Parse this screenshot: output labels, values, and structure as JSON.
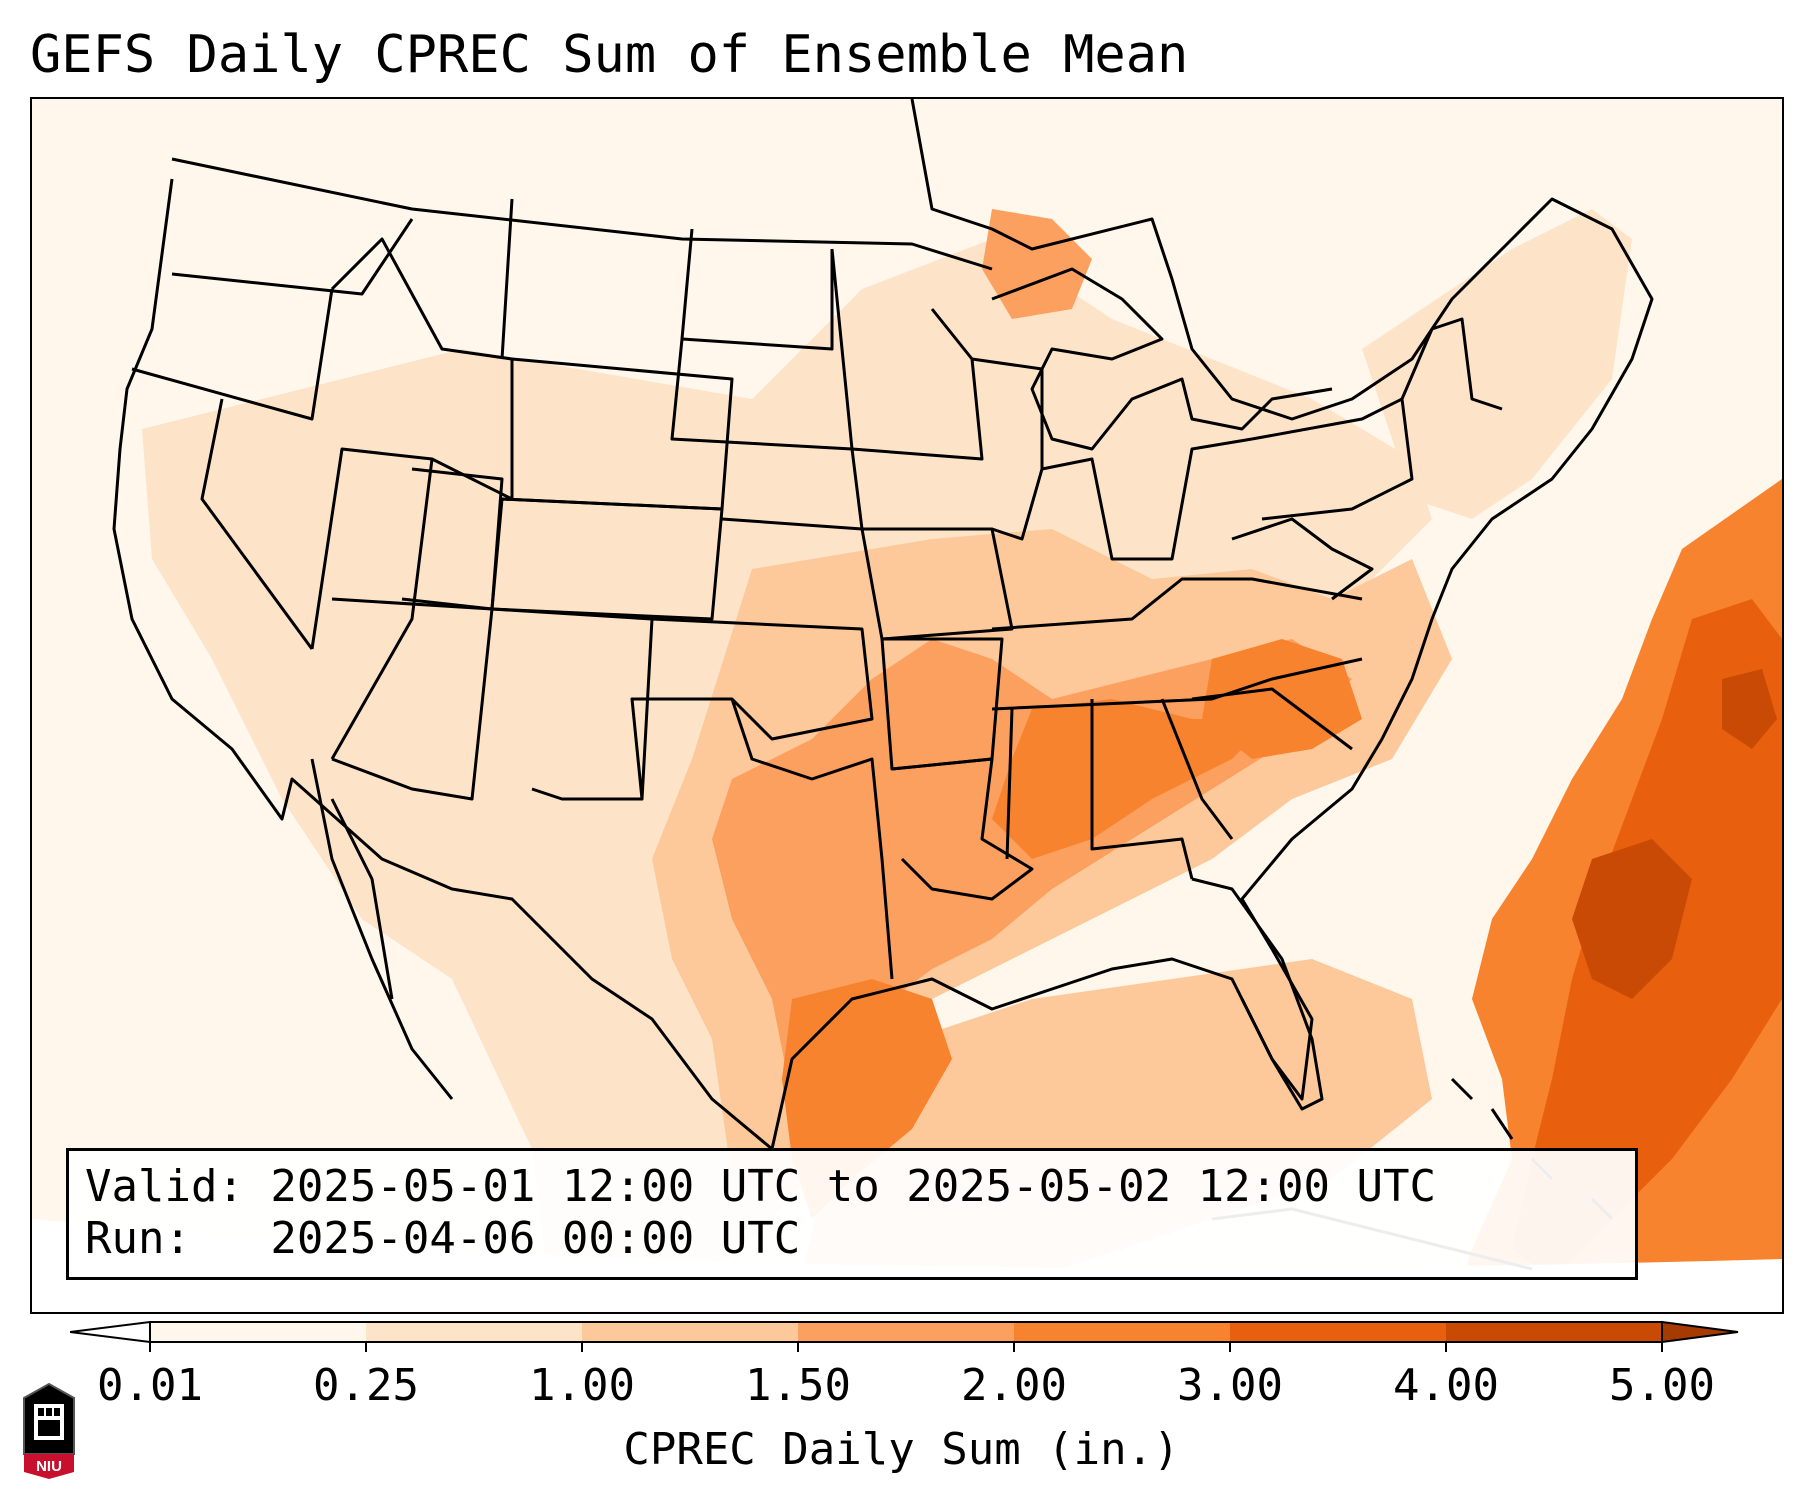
{
  "title": "GEFS Daily CPREC Sum of Ensemble Mean",
  "info": {
    "valid": "Valid: 2025-05-01 12:00 UTC to 2025-05-02 12:00 UTC",
    "run": "Run:   2025-04-06 00:00 UTC"
  },
  "colorbar": {
    "label": "CPREC Daily Sum (in.)",
    "ticks": [
      "0.01",
      "0.25",
      "1.00",
      "1.50",
      "2.00",
      "3.00",
      "4.00",
      "5.00"
    ],
    "colors": [
      "#fff6ec",
      "#fde4c9",
      "#fdc89a",
      "#fca060",
      "#f8832f",
      "#e8600e",
      "#c84a04"
    ]
  },
  "logo": {
    "text": "NIU",
    "colors": [
      "#c8102e",
      "#000000",
      "#ffffff"
    ]
  },
  "map": {
    "region": "Contiguous United States",
    "fill_colors": [
      "#fff6ec",
      "#fde4c9",
      "#fdc89a",
      "#fca060",
      "#f8832f",
      "#e8600e",
      "#c84a04"
    ],
    "boundary_color": "#000000"
  }
}
